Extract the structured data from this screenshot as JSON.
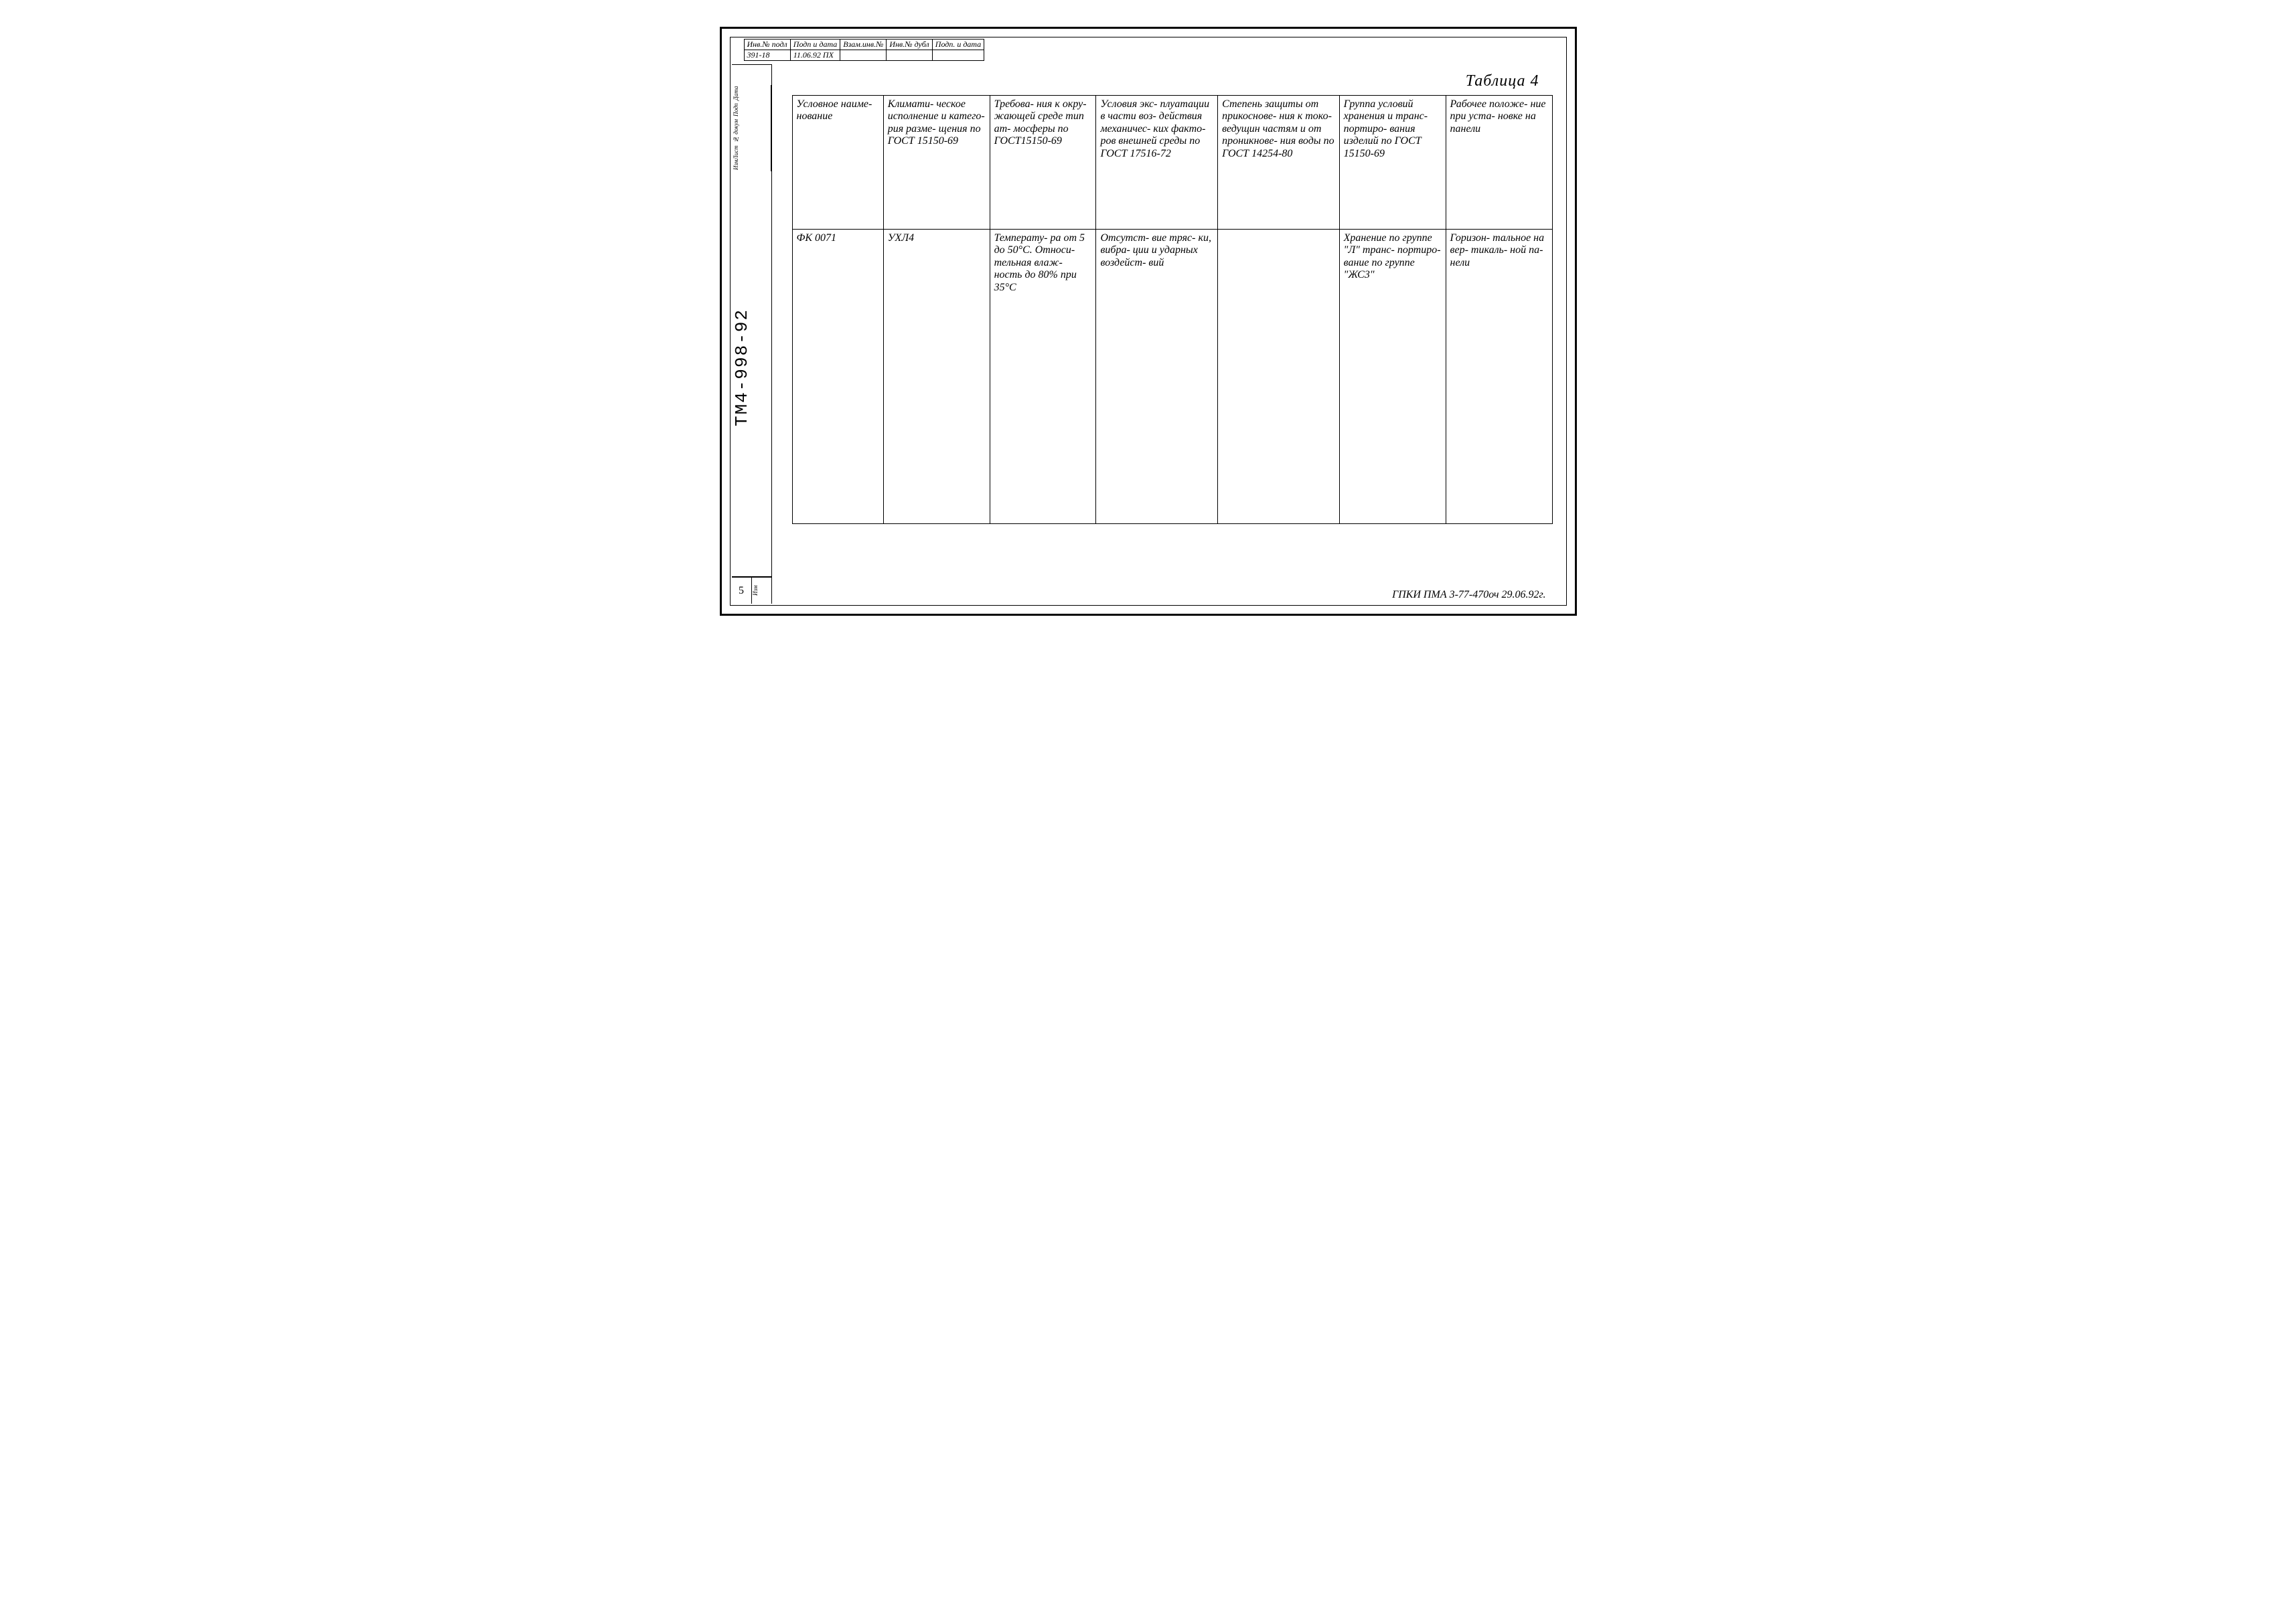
{
  "top_strip": {
    "headers": [
      "Инв.№ подл",
      "Подп и дата",
      "Взам.инв.№",
      "Инв.№ дубл",
      "Подп. и дата"
    ],
    "values": [
      "391-18",
      "11.06.92 ПХ",
      "",
      "",
      ""
    ]
  },
  "left_rail": {
    "mini_labels": [
      "ИзмЛист",
      "№ докум",
      "Подп",
      "Дата"
    ],
    "doc_number": "ТМ4-998-92",
    "page_number": "5",
    "page_label": "Изм"
  },
  "table_title": "Таблица 4",
  "columns": [
    "Условное наиме-\nнование",
    "Климати-\nческое исполнение и катего-\nрия разме-\nщения по ГОСТ 15150-69",
    "Требова-\nния к окру-\nжающей среде тип ат-\nмосферы по ГОСТ15150-69",
    "Условия экс-\nплуатации в части воз-\nдействия механичес-\nких факто-\nров внешней среды по ГОСТ 17516-72",
    "Степень защиты от прикоснове-\nния к токо-\nведущин частям и от проникнове-\nния воды по ГОСТ 14254-80",
    "Группа условий хранения и транс-\nпортиро-\nвания изделий по ГОСТ 15150-69",
    "Рабочее положе-\nние при уста-\nновке на панели"
  ],
  "row": [
    "ФК 0071",
    "УХЛ4",
    "Температу-\nра от 5 до 50°С. Относи-\nтельная влаж-\nность до 80% при 35°С",
    "Отсутст-\nвие тряс-\nки, вибра-\nции и ударных воздейст-\nвий",
    "",
    "Хранение по группе \"Л\" транс-\nпортиро-\nвание по группе \"ЖС3\"",
    "Горизон-\nтальное на вер-\nтикаль-\nной па-\nнели"
  ],
  "footer": "ГПКИ ПМА 3-77-470оч  29.06.92г."
}
